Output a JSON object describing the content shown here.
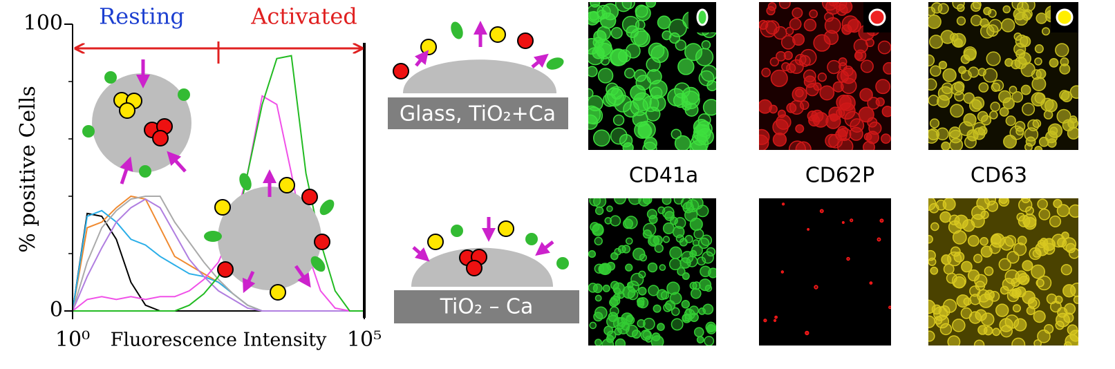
{
  "chart_data": {
    "type": "line",
    "x_label": "Fluorescence Intensity",
    "y_label": "% positive Cells",
    "annotations": [
      "Resting",
      "Activated"
    ],
    "xlog": true,
    "xlim": [
      1,
      100000
    ],
    "xticks": [
      {
        "value": 1,
        "label": "10⁰"
      },
      {
        "value": 100000,
        "label": "10⁵"
      }
    ],
    "ylim": [
      0,
      100
    ],
    "yticks": [
      0,
      100
    ],
    "yminorticks": [
      20,
      40,
      60,
      80
    ],
    "x": [
      1,
      1.778,
      3.162,
      5.623,
      10,
      17.78,
      31.62,
      56.23,
      100,
      177.8,
      316.2,
      562.3,
      1000,
      1778,
      3162,
      5623,
      10000,
      17783,
      31623,
      56234,
      100000
    ],
    "series": [
      {
        "color": "#000000",
        "values": [
          0,
          34,
          33,
          25,
          10,
          2,
          0,
          0,
          0,
          0,
          0,
          0,
          0,
          0,
          0,
          0,
          0,
          0,
          0,
          0,
          0
        ]
      },
      {
        "color": "#f08a30",
        "values": [
          0,
          29,
          31,
          36,
          40,
          39,
          29,
          19,
          16,
          13,
          10,
          6,
          2,
          0,
          0,
          0,
          0,
          0,
          0,
          0,
          0
        ]
      },
      {
        "color": "#2aaee8",
        "values": [
          0,
          33,
          35,
          31,
          25,
          23,
          19,
          16,
          13,
          12,
          10,
          6,
          2,
          0,
          0,
          0,
          0,
          0,
          0,
          0,
          0
        ]
      },
      {
        "color": "#aaaaaa",
        "values": [
          0,
          17,
          29,
          35,
          39,
          40,
          40,
          31,
          24,
          17,
          11,
          6,
          2,
          0,
          0,
          0,
          0,
          0,
          0,
          0,
          0
        ]
      },
      {
        "color": "#b07ee0",
        "values": [
          0,
          12,
          22,
          31,
          36,
          39,
          36,
          27,
          18,
          12,
          7,
          4,
          1,
          0,
          0,
          0,
          0,
          0,
          0,
          0,
          0
        ]
      },
      {
        "color": "#f050e8",
        "values": [
          0,
          4,
          5,
          4,
          5,
          4,
          5,
          5,
          7,
          11,
          17,
          29,
          48,
          75,
          72,
          48,
          22,
          7,
          1,
          0,
          0
        ]
      },
      {
        "color": "#22bb22",
        "values": [
          0,
          0,
          0,
          0,
          0,
          0,
          0,
          0,
          2,
          6,
          12,
          24,
          48,
          72,
          88,
          89,
          48,
          24,
          7,
          0,
          0
        ]
      }
    ]
  },
  "diagrams": {
    "top_label": "Glass, TiO₂+Ca",
    "bottom_label": "TiO₂ – Ca"
  },
  "images": {
    "captions": [
      "CD41a",
      "CD62P",
      "CD63"
    ]
  }
}
